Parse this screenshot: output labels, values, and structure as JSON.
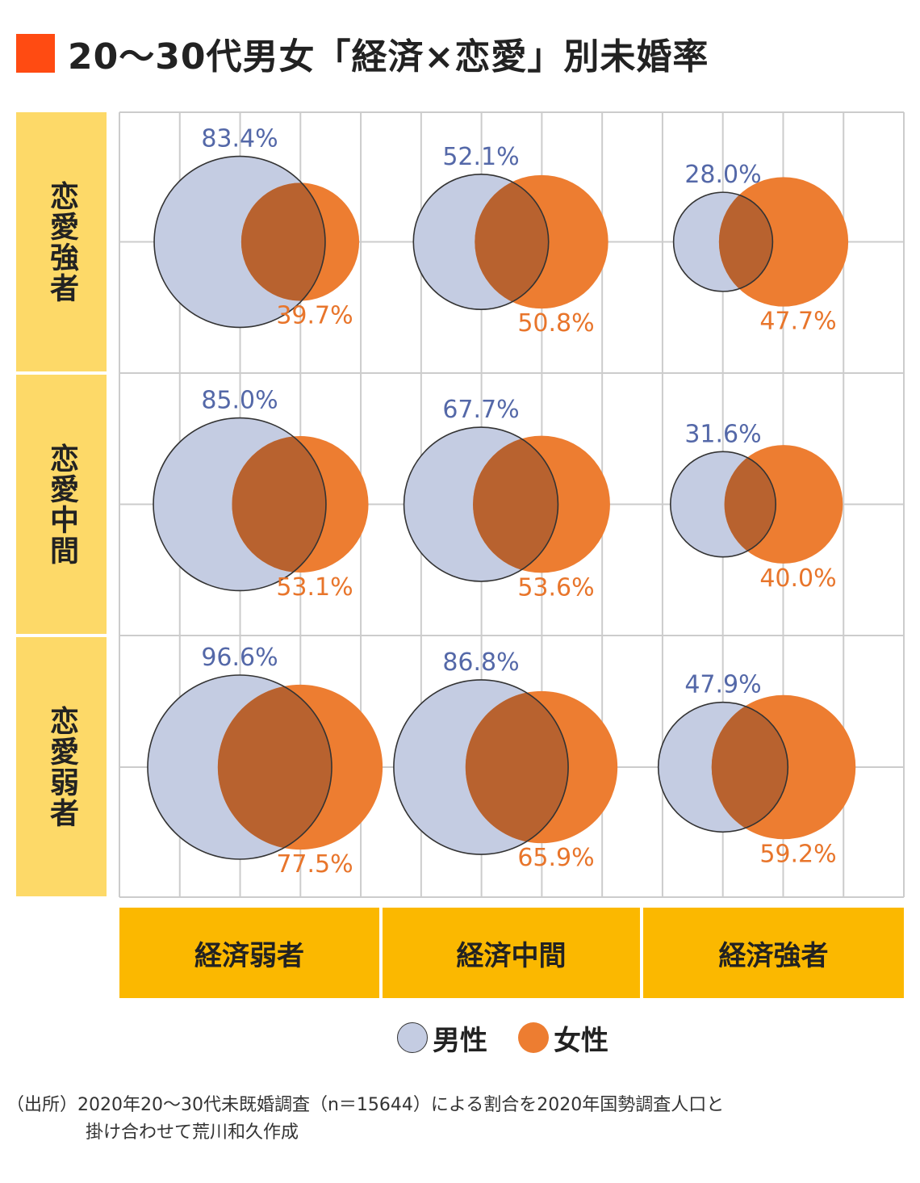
{
  "title": "20～30代男女「経済×恋愛」別未婚率",
  "colors": {
    "title_marker": "#ff4b12",
    "row_label_bg": "#fdd968",
    "col_label_bg": "#fbb800",
    "male_fill": "#c4cce2",
    "male_text": "#5468a8",
    "female_fill": "#ed7d31",
    "female_text": "#e8752b",
    "overlap": "#b8622f",
    "grid": "#cccccc"
  },
  "row_labels": [
    "恋愛強者",
    "恋愛中間",
    "恋愛弱者"
  ],
  "col_labels": [
    "経済弱者",
    "経済中間",
    "経済強者"
  ],
  "legend": [
    {
      "label": "男性",
      "color": "#c4cce2",
      "icon": "circle-icon"
    },
    {
      "label": "女性",
      "color": "#ed7d31",
      "icon": "circle-icon"
    }
  ],
  "source": {
    "line1": "（出所）2020年20～30代未既婚調査（n＝15644）による割合を2020年国勢調査人口と",
    "line2": "掛け合わせて荒川和久作成"
  },
  "chart_data": {
    "type": "bubble",
    "title": "20～30代男女「経済×恋愛」別未婚率",
    "rows": [
      "恋愛強者",
      "恋愛中間",
      "恋愛弱者"
    ],
    "columns": [
      "経済弱者",
      "経済中間",
      "経済強者"
    ],
    "series": [
      {
        "name": "男性",
        "values": [
          [
            83.4,
            52.1,
            28.0
          ],
          [
            85.0,
            67.7,
            31.6
          ],
          [
            96.6,
            86.8,
            47.9
          ]
        ],
        "labels": [
          [
            "83.4%",
            "52.1%",
            "28.0%"
          ],
          [
            "85.0%",
            "67.7%",
            "31.6%"
          ],
          [
            "96.6%",
            "86.8%",
            "47.9%"
          ]
        ]
      },
      {
        "name": "女性",
        "values": [
          [
            39.7,
            50.8,
            47.7
          ],
          [
            53.1,
            53.6,
            40.0
          ],
          [
            77.5,
            65.9,
            59.2
          ]
        ],
        "labels": [
          [
            "39.7%",
            "50.8%",
            "47.7%"
          ],
          [
            "53.1%",
            "53.6%",
            "40.0%"
          ],
          [
            "77.5%",
            "65.9%",
            "59.2%"
          ]
        ]
      }
    ],
    "unit": "%",
    "grid": true
  }
}
